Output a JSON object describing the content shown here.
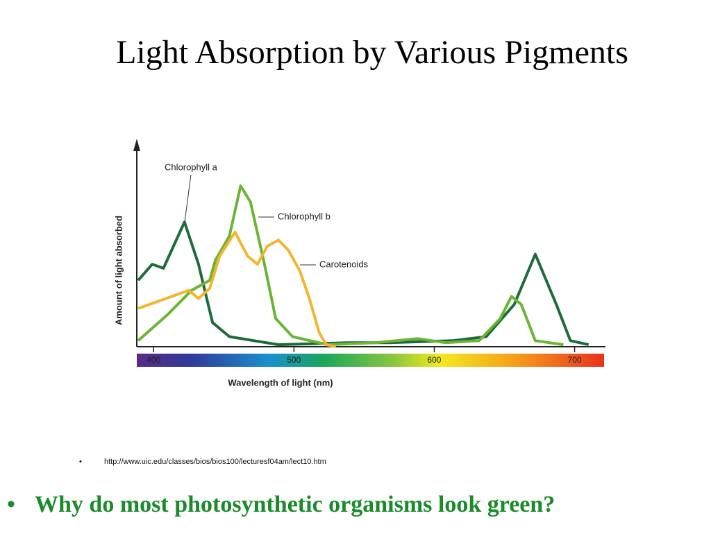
{
  "title": "Light Absorption by Various Pigments",
  "chart_data": {
    "type": "line",
    "x_label": "Wavelength of light (nm)",
    "y_label": "Amount of light absorbed",
    "xlim": [
      388,
      722
    ],
    "xticks": [
      400,
      500,
      600,
      700
    ],
    "ylim": [
      0,
      100
    ],
    "series": [
      {
        "name": "Chlorophyll a",
        "color": "#1d6b3b",
        "x": [
          389,
          399,
          407,
          422,
          432,
          442,
          454,
          489,
          538,
          568,
          613,
          637,
          657,
          672,
          687,
          697,
          710
        ],
        "values": [
          33,
          41,
          39,
          62,
          41,
          12,
          5,
          1,
          2,
          2,
          3,
          5,
          21,
          46,
          21,
          3,
          1
        ]
      },
      {
        "name": "Chlorophyll b",
        "color": "#6ab534",
        "x": [
          389,
          410,
          427,
          440,
          444,
          454,
          462,
          469,
          479,
          487,
          499,
          524,
          558,
          588,
          608,
          632,
          647,
          655,
          662,
          672,
          692
        ],
        "values": [
          3,
          16,
          28,
          33,
          43,
          55,
          80,
          72,
          41,
          14,
          5,
          1,
          2,
          4,
          2,
          3,
          14,
          25,
          21,
          3,
          1
        ]
      },
      {
        "name": "Carotenoids",
        "color": "#f2b52f",
        "x": [
          389,
          405,
          425,
          432,
          440,
          447,
          458,
          467,
          474,
          481,
          489,
          496,
          504,
          511,
          518,
          523,
          530
        ],
        "values": [
          19,
          23,
          28,
          24,
          29,
          45,
          57,
          45,
          41,
          50,
          53,
          48,
          38,
          24,
          7,
          1,
          0
        ]
      }
    ]
  },
  "source": "http://www.uic.edu/classes/bios/bios100/lecturesf04am/lect10.htm",
  "question": "Why do most photosynthetic organisms look green?"
}
